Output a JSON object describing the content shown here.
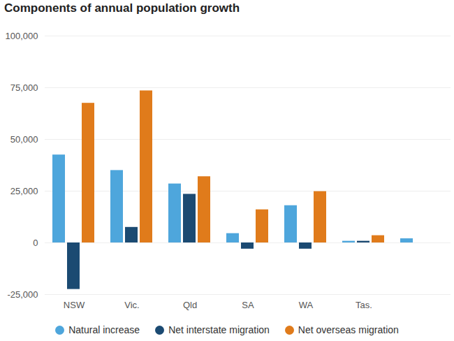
{
  "chart_data": {
    "type": "bar",
    "title": "Components of annual population growth",
    "categories": [
      "NSW",
      "Vic.",
      "Qld",
      "SA",
      "WA",
      "Tas.",
      null
    ],
    "series": [
      {
        "name": "Natural increase",
        "color": "#4ea6dc",
        "values": [
          42500,
          35000,
          28500,
          4500,
          18000,
          800,
          2000
        ]
      },
      {
        "name": "Net interstate migration",
        "color": "#1b4a72",
        "values": [
          -22500,
          7500,
          23500,
          -3000,
          -3000,
          800,
          null
        ]
      },
      {
        "name": "Net overseas migration",
        "color": "#e07b1b",
        "values": [
          67500,
          73500,
          32000,
          16000,
          24800,
          3500,
          null
        ]
      }
    ],
    "ylim": [
      -25000,
      100000
    ],
    "yticks": [
      {
        "value": -25000,
        "label": "-25,000"
      },
      0,
      {
        "value": 25000,
        "label": "25,000"
      },
      {
        "value": 50000,
        "label": "50,000"
      },
      {
        "value": 75000,
        "label": "75,000"
      },
      {
        "value": 100000,
        "label": "100,000"
      }
    ],
    "grid": true,
    "legend": "bottom"
  }
}
